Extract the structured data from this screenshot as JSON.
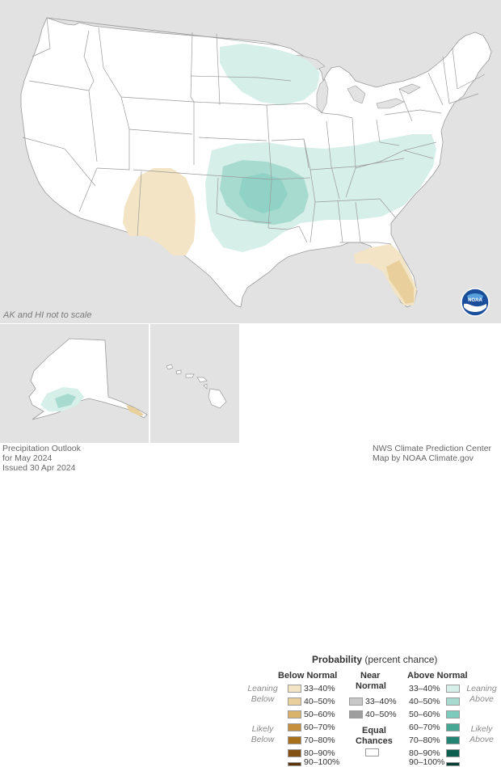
{
  "map": {
    "scale_note": "AK and HI not to scale",
    "colors": {
      "land": "#ffffff",
      "water": "#e2e2e2",
      "above_33_40": "#d6efe9",
      "above_40_50": "#a8dbd0",
      "above_50_60": "#7ccabb",
      "below_33_40": "#f3e4c5",
      "below_40_50": "#e8cf9b"
    },
    "icon": "noaa-logo"
  },
  "legend": {
    "title_bold": "Probability",
    "title_rest": "(percent chance)",
    "below_header": "Below Normal",
    "near_header_1": "Near",
    "near_header_2": "Normal",
    "above_header": "Above Normal",
    "leaning_below_1": "Leaning",
    "leaning_below_2": "Below",
    "likely_below_1": "Likely",
    "likely_below_2": "Below",
    "leaning_above_1": "Leaning",
    "leaning_above_2": "Above",
    "likely_above_1": "Likely",
    "likely_above_2": "Above",
    "below": [
      {
        "label": "33–40%",
        "color": "#f3e4c5"
      },
      {
        "label": "40–50%",
        "color": "#e8cf9b"
      },
      {
        "label": "50–60%",
        "color": "#d9b36a"
      },
      {
        "label": "60–70%",
        "color": "#c58f3c"
      },
      {
        "label": "70–80%",
        "color": "#a9701c"
      },
      {
        "label": "80–90%",
        "color": "#845114"
      },
      {
        "label": "90–100%",
        "color": "#5a340b"
      }
    ],
    "near": [
      {
        "label": "33–40%",
        "color": "#c8c8c8"
      },
      {
        "label": "40–50%",
        "color": "#9e9e9e"
      }
    ],
    "above": [
      {
        "label": "33–40%",
        "color": "#d6efe9"
      },
      {
        "label": "40–50%",
        "color": "#a8dbd0"
      },
      {
        "label": "50–60%",
        "color": "#7ccabb"
      },
      {
        "label": "60–70%",
        "color": "#46a895"
      },
      {
        "label": "70–80%",
        "color": "#238473"
      },
      {
        "label": "80–90%",
        "color": "#0d5f50"
      },
      {
        "label": "90–100%",
        "color": "#033d33"
      }
    ],
    "equal_1": "Equal",
    "equal_2": "Chances"
  },
  "footer": {
    "left_1": "Precipitation Outlook",
    "left_2": "for May 2024",
    "left_3": "Issued 30 Apr 2024",
    "right_1": "NWS Climate Prediction Center",
    "right_2": "Map by NOAA Climate.gov"
  }
}
